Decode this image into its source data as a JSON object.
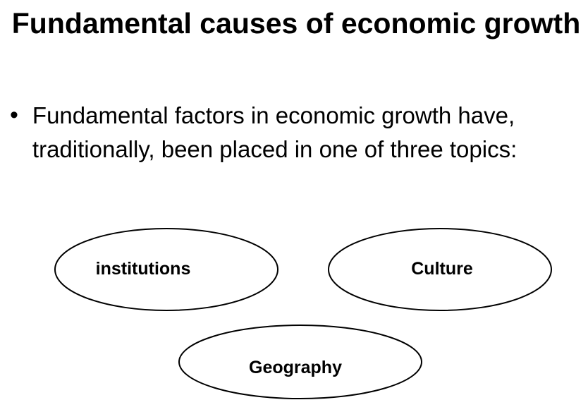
{
  "slide": {
    "title": "Fundamental causes of economic growth",
    "bullet_symbol": "•",
    "bullet_text": "Fundamental factors in economic growth have, traditionally, been placed in one of three topics:"
  },
  "topics": [
    {
      "label": "institutions"
    },
    {
      "label": "Culture"
    },
    {
      "label": "Geography"
    }
  ]
}
